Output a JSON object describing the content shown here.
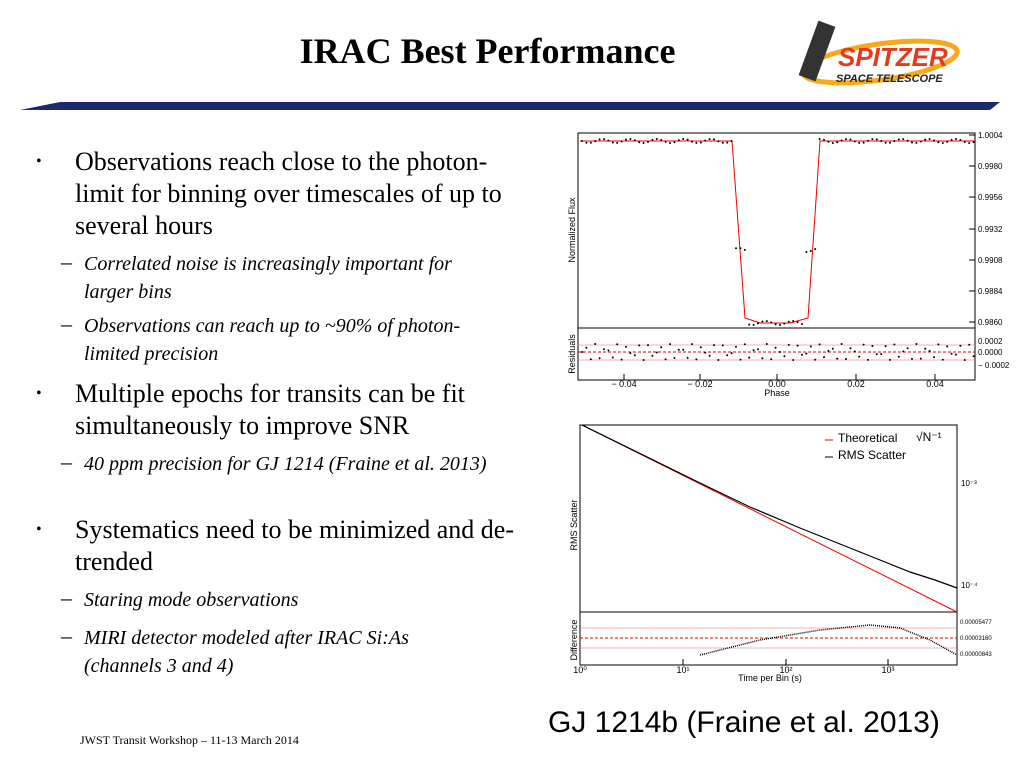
{
  "header": {
    "title": "IRAC Best Performance",
    "logo": {
      "name": "SPITZER",
      "subtitle": "SPACE TELESCOPE"
    }
  },
  "bullets": [
    {
      "text": "Observations reach close to the photon-limit for binning over timescales of up to several hours",
      "sub": [
        "Correlated noise is increasingly important for larger bins",
        "Observations can reach up to ~90% of photon-limited precision"
      ]
    },
    {
      "text": "Multiple epochs for transits can be fit simultaneously to improve SNR",
      "sub": [
        "40 ppm precision for GJ 1214 (Fraine et al. 2013)"
      ]
    },
    {
      "text": "Systematics need to be minimized and de-trended",
      "sub": [
        "Staring mode observations",
        "MIRI detector modeled after IRAC Si:As (channels 3 and 4)"
      ]
    }
  ],
  "figures": {
    "light_curve": {
      "ylabel": "Normalized Flux",
      "yticks": [
        "1.0004",
        "0.9980",
        "0.9956",
        "0.9932",
        "0.9908",
        "0.9884",
        "0.9860"
      ],
      "residual_label": "Residuals",
      "residual_ticks": [
        "0.0002",
        "0.0000",
        "− 0.0002"
      ],
      "xticks": [
        "− 0.04",
        "− 0.02",
        "0.00",
        "0.02",
        "0.04"
      ],
      "xlabel": "Phase"
    },
    "rms": {
      "legend": [
        "Theoretical",
        "RMS Scatter"
      ],
      "sqrt_label": "√N⁻¹",
      "ylabel": "RMS Scatter",
      "yticks": [
        "10⁻³",
        "10⁻⁴"
      ],
      "difference_label": "Difference",
      "difference_ticks": [
        "0.00005477",
        "0.00003160",
        "0.00000843"
      ],
      "xticks": [
        "10⁰",
        "10¹",
        "10²",
        "10³"
      ],
      "xlabel": "Time per Bin (s)"
    }
  },
  "caption": "GJ 1214b (Fraine et al. 2013)",
  "footer": "JWST Transit Workshop – 11-13 March 2014"
}
